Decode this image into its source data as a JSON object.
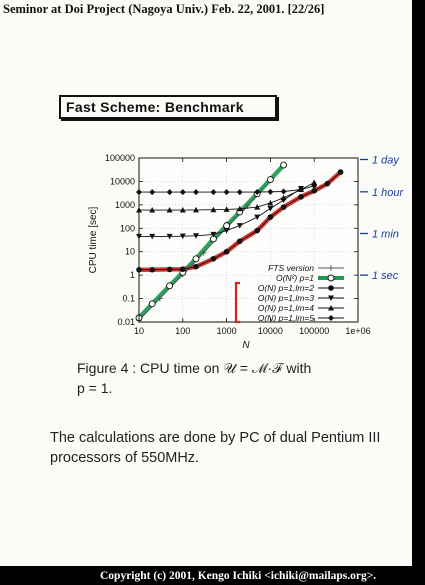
{
  "header": {
    "text": "Seminor at Doi Project (Nagoya Univ.) Feb. 22, 2001. [22/26]"
  },
  "slide_title": "Fast Scheme: Benchmark",
  "chart_data": {
    "type": "line",
    "xlabel": "N",
    "ylabel": "CPU time [sec]",
    "xscale": "log",
    "yscale": "log",
    "xlim": [
      10,
      1000000
    ],
    "ylim": [
      0.01,
      100000
    ],
    "x_ticks": [
      "10",
      "100",
      "1000",
      "10000",
      "100000",
      "1e+06"
    ],
    "y_ticks": [
      "0.01",
      "0.1",
      "1",
      "10",
      "100",
      "1000",
      "10000",
      "100000"
    ],
    "legend_position": "bottom-right",
    "series": [
      {
        "name": "FTS version",
        "marker": "plus",
        "color": "#555555",
        "x": [
          10,
          30,
          100,
          300,
          1000,
          3000,
          10000
        ],
        "y": [
          0.012,
          0.1,
          1.1,
          9,
          110,
          900,
          12000
        ]
      },
      {
        "name": "O(N²) p=1",
        "marker": "open-circle",
        "color": "#1f9a55",
        "x": [
          10,
          20,
          50,
          100,
          200,
          500,
          1000,
          2000,
          5000,
          10000,
          20000
        ],
        "y": [
          0.015,
          0.06,
          0.35,
          1.3,
          5,
          35,
          130,
          500,
          3000,
          12000,
          50000
        ]
      },
      {
        "name": "O(N) p=1,lm=2",
        "marker": "filled-circle",
        "color": "#111111",
        "x": [
          10,
          20,
          50,
          100,
          200,
          500,
          1000,
          2000,
          5000,
          10000,
          20000,
          50000,
          100000,
          200000,
          400000
        ],
        "y": [
          1.7,
          1.7,
          1.75,
          1.8,
          2.3,
          5,
          10,
          28,
          80,
          300,
          800,
          2200,
          4000,
          8000,
          25000
        ]
      },
      {
        "name": "O(N) p=1,lm=3",
        "marker": "filled-triangle-down",
        "color": "#111111",
        "x": [
          10,
          20,
          50,
          100,
          200,
          500,
          1000,
          2000,
          5000,
          10000,
          20000,
          50000
        ],
        "y": [
          45,
          45,
          45,
          46,
          48,
          55,
          80,
          130,
          300,
          700,
          1600,
          5000
        ]
      },
      {
        "name": "O(N) p=1,lm=4",
        "marker": "filled-triangle-up",
        "color": "#111111",
        "x": [
          10,
          20,
          50,
          100,
          200,
          500,
          1000,
          2000,
          5000,
          10000,
          20000,
          50000,
          100000
        ],
        "y": [
          600,
          600,
          600,
          600,
          610,
          620,
          640,
          680,
          800,
          1200,
          2000,
          4500,
          9000
        ]
      },
      {
        "name": "O(N) p=1,lm=5",
        "marker": "filled-diamond",
        "color": "#111111",
        "x": [
          10,
          20,
          50,
          100,
          200,
          500,
          1000,
          2000,
          5000,
          10000,
          20000,
          50000,
          100000
        ],
        "y": [
          3500,
          3500,
          3500,
          3500,
          3500,
          3500,
          3500,
          3500,
          3550,
          3600,
          3700,
          4500,
          6500
        ]
      }
    ],
    "annotations": [
      {
        "text": "1 day",
        "y": 86400
      },
      {
        "text": "1 hour",
        "y": 3600
      },
      {
        "text": "1 min",
        "y": 60
      },
      {
        "text": "1 sec",
        "y": 1
      }
    ],
    "colors": {
      "handwritten_ink": "#1b3fa0",
      "highlight_red": "#d6231f",
      "highlight_green": "#1f9a55"
    }
  },
  "caption": {
    "line1": "Figure 4 : CPU time on 𝒰 = ℳ·ℱ with",
    "line2": "p = 1."
  },
  "body_text": "The calculations are done by PC of dual Pentium III processors of 550MHz.",
  "footer": {
    "text": "Copyright (c) 2001, Kengo Ichiki <ichiki@mailaps.org>."
  }
}
